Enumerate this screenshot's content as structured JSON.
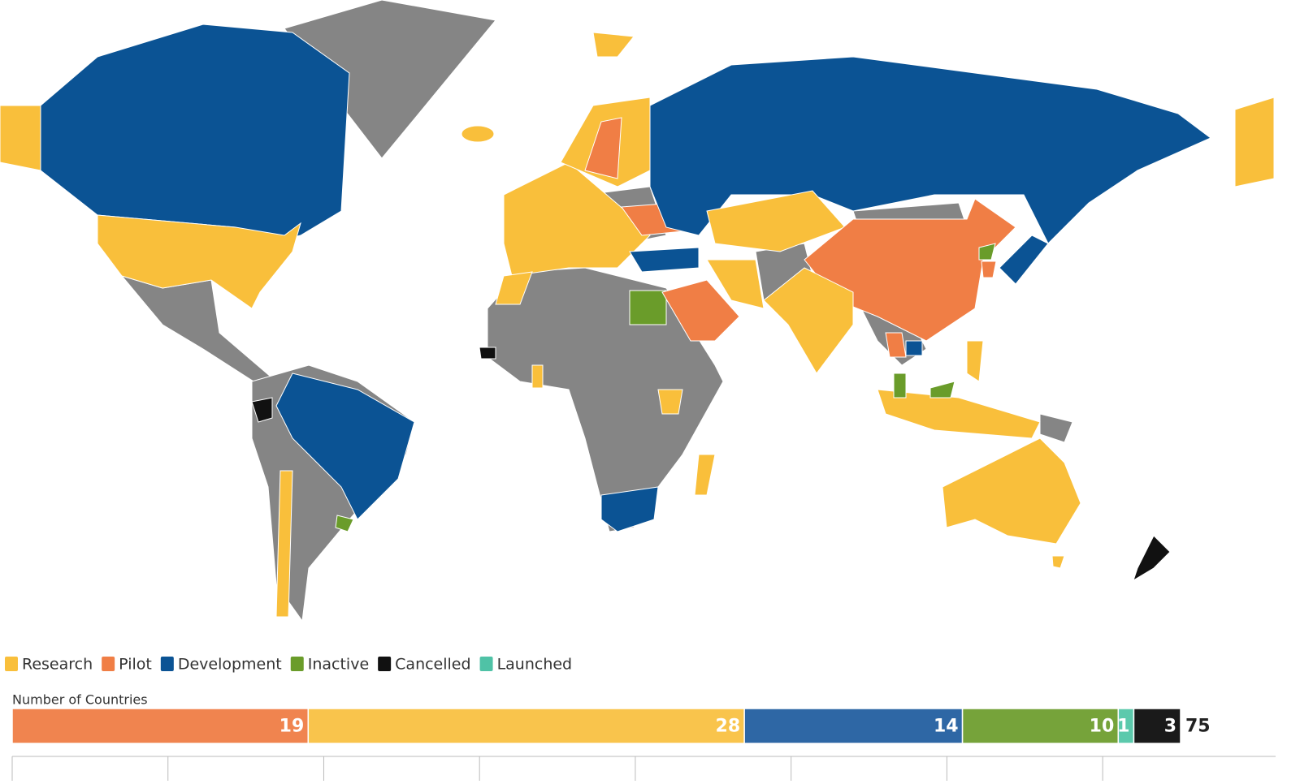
{
  "legend": [
    {
      "name": "Research",
      "color": "#f9bf3b"
    },
    {
      "name": "Pilot",
      "color": "#f07e45"
    },
    {
      "name": "Development",
      "color": "#0b5394"
    },
    {
      "name": "Inactive",
      "color": "#6a9c2a"
    },
    {
      "name": "Cancelled",
      "color": "#111111"
    },
    {
      "name": "Launched",
      "color": "#4fc2a6"
    }
  ],
  "chart_data": {
    "type": "stacked-bar",
    "title": "Number of Countries",
    "series": [
      {
        "color": "#f0844f",
        "values": [
          19
        ]
      },
      {
        "color": "#f9c44c",
        "values": [
          28
        ]
      },
      {
        "color": "#2e67a5",
        "values": [
          14
        ]
      },
      {
        "color": "#76a33a",
        "values": [
          10
        ]
      },
      {
        "color": "#5cc9ac",
        "values": [
          1
        ]
      },
      {
        "color": "#1a1a1a",
        "values": [
          3
        ]
      }
    ],
    "total": 75,
    "xlim": [
      0,
      75
    ],
    "xticks": [
      0,
      10,
      20,
      30,
      40,
      50,
      60,
      70
    ]
  }
}
